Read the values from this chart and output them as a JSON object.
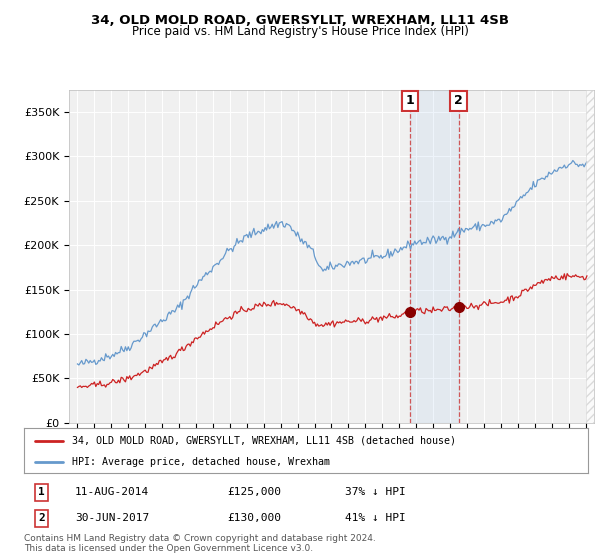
{
  "title": "34, OLD MOLD ROAD, GWERSYLLT, WREXHAM, LL11 4SB",
  "subtitle": "Price paid vs. HM Land Registry's House Price Index (HPI)",
  "hpi_color": "#6699cc",
  "price_color": "#cc2222",
  "background_color": "#ffffff",
  "plot_bg_color": "#f0f0f0",
  "ylim": [
    0,
    375000
  ],
  "yticks": [
    0,
    50000,
    100000,
    150000,
    200000,
    250000,
    300000,
    350000
  ],
  "ytick_labels": [
    "£0",
    "£50K",
    "£100K",
    "£150K",
    "£200K",
    "£250K",
    "£300K",
    "£350K"
  ],
  "sale1_year": 2014.62,
  "sale1_value": 125000,
  "sale1_date": "11-AUG-2014",
  "sale1_price": "£125,000",
  "sale1_pct": "37% ↓ HPI",
  "sale2_year": 2017.5,
  "sale2_value": 130000,
  "sale2_date": "30-JUN-2017",
  "sale2_price": "£130,000",
  "sale2_pct": "41% ↓ HPI",
  "legend_label1": "34, OLD MOLD ROAD, GWERSYLLT, WREXHAM, LL11 4SB (detached house)",
  "legend_label2": "HPI: Average price, detached house, Wrexham",
  "footer": "Contains HM Land Registry data © Crown copyright and database right 2024.\nThis data is licensed under the Open Government Licence v3.0.",
  "xlim_start": 1994.5,
  "xlim_end": 2025.5
}
